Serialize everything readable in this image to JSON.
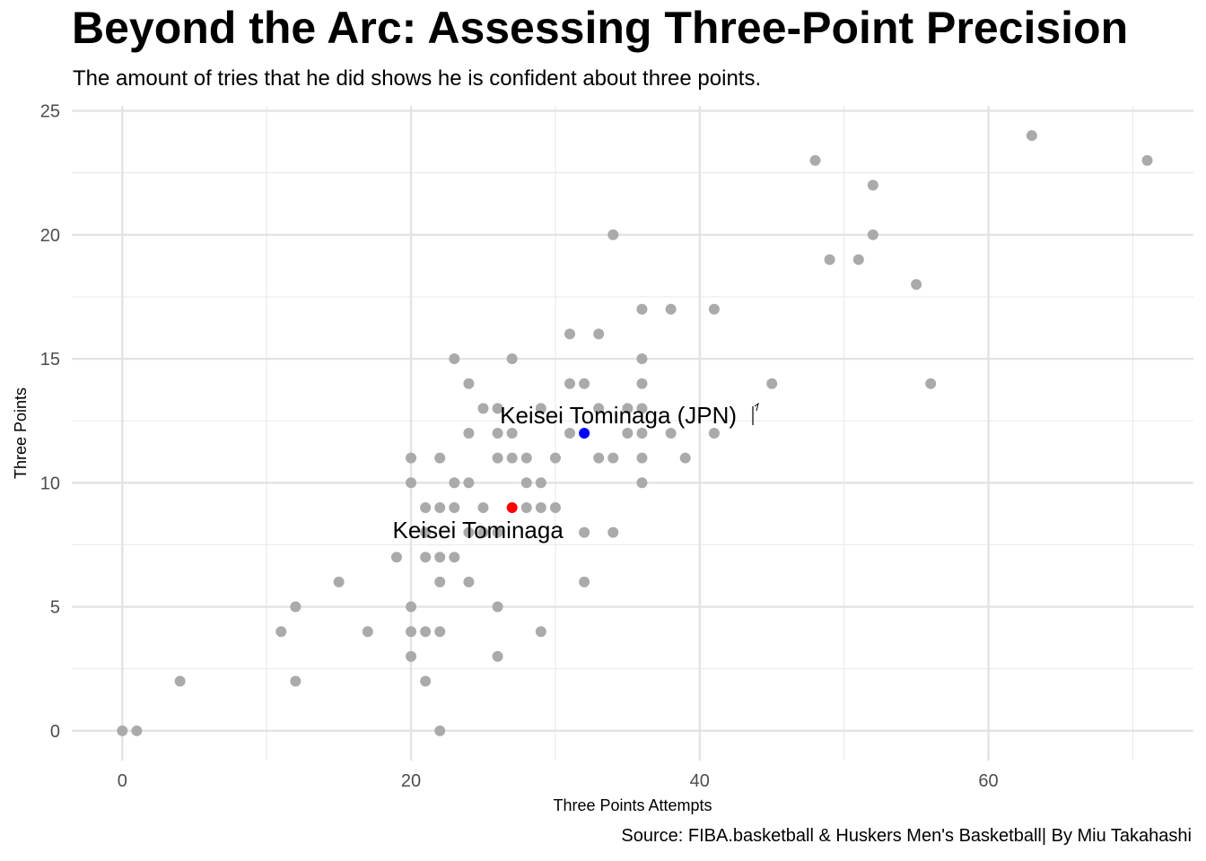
{
  "chart_data": {
    "type": "scatter",
    "title": "Beyond the Arc: Assessing Three-Point Precision",
    "subtitle": "The amount of tries that he did shows he is confident about three points.",
    "caption": "Source: FIBA.basketball & Huskers Men's Basketball| By Miu Takahashi",
    "xlabel": "Three Points Attempts",
    "ylabel": "Three Points",
    "xlim": [
      -3.5,
      74.2
    ],
    "ylim": [
      -1.2,
      25.2
    ],
    "x_ticks": [
      0,
      20,
      40,
      60
    ],
    "y_ticks": [
      0,
      5,
      10,
      15,
      20,
      25
    ],
    "grid": true,
    "default_color": "#aaaaaa",
    "series": [
      {
        "points": [
          [
            0,
            0
          ],
          [
            1,
            0
          ],
          [
            4,
            2
          ],
          [
            11,
            4
          ],
          [
            12,
            5
          ],
          [
            12,
            2
          ],
          [
            15,
            6
          ],
          [
            17,
            4
          ],
          [
            19,
            7
          ],
          [
            20,
            11
          ],
          [
            20,
            10
          ],
          [
            20,
            5
          ],
          [
            20,
            4
          ],
          [
            20,
            3
          ],
          [
            21,
            9
          ],
          [
            21,
            8
          ],
          [
            21,
            7
          ],
          [
            21,
            4
          ],
          [
            21,
            2
          ],
          [
            22,
            11
          ],
          [
            22,
            9
          ],
          [
            22,
            7
          ],
          [
            22,
            6
          ],
          [
            22,
            4
          ],
          [
            22,
            0
          ],
          [
            23,
            15
          ],
          [
            23,
            10
          ],
          [
            23,
            9
          ],
          [
            23,
            7
          ],
          [
            24,
            14
          ],
          [
            24,
            12
          ],
          [
            24,
            10
          ],
          [
            24,
            8
          ],
          [
            24,
            6
          ],
          [
            25,
            13
          ],
          [
            25,
            9
          ],
          [
            25,
            8
          ],
          [
            26,
            13
          ],
          [
            26,
            12
          ],
          [
            26,
            11
          ],
          [
            26,
            8
          ],
          [
            26,
            5
          ],
          [
            26,
            3
          ],
          [
            27,
            15
          ],
          [
            27,
            12
          ],
          [
            27,
            11
          ],
          [
            28,
            11
          ],
          [
            28,
            10
          ],
          [
            28,
            9
          ],
          [
            29,
            13
          ],
          [
            29,
            10
          ],
          [
            29,
            9
          ],
          [
            29,
            4
          ],
          [
            30,
            11
          ],
          [
            30,
            9
          ],
          [
            31,
            16
          ],
          [
            31,
            14
          ],
          [
            31,
            12
          ],
          [
            32,
            14
          ],
          [
            32,
            8
          ],
          [
            32,
            6
          ],
          [
            33,
            16
          ],
          [
            33,
            13
          ],
          [
            33,
            11
          ],
          [
            34,
            20
          ],
          [
            34,
            11
          ],
          [
            34,
            8
          ],
          [
            35,
            13
          ],
          [
            35,
            12
          ],
          [
            36,
            17
          ],
          [
            36,
            15
          ],
          [
            36,
            14
          ],
          [
            36,
            13
          ],
          [
            36,
            12
          ],
          [
            36,
            11
          ],
          [
            36,
            10
          ],
          [
            38,
            17
          ],
          [
            38,
            12
          ],
          [
            39,
            11
          ],
          [
            41,
            17
          ],
          [
            41,
            12
          ],
          [
            45,
            14
          ],
          [
            48,
            23
          ],
          [
            49,
            19
          ],
          [
            51,
            19
          ],
          [
            52,
            22
          ],
          [
            52,
            20
          ],
          [
            55,
            18
          ],
          [
            56,
            14
          ],
          [
            63,
            24
          ],
          [
            71,
            23
          ]
        ]
      }
    ],
    "highlights": [
      {
        "label": "Keisei Tominaga",
        "x": 27,
        "y": 9,
        "color": "#ff0000"
      },
      {
        "label": "Keisei Tominaga (JPN)",
        "x": 32,
        "y": 12,
        "color": "#0000ff"
      }
    ]
  }
}
